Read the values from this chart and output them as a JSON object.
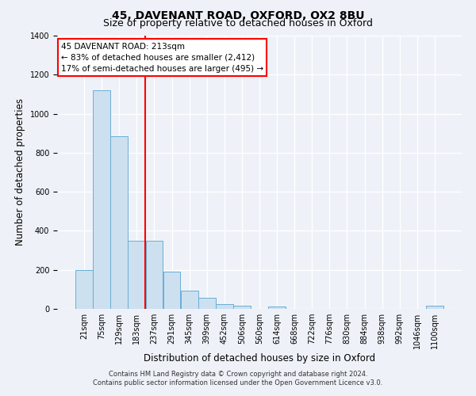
{
  "title": "45, DAVENANT ROAD, OXFORD, OX2 8BU",
  "subtitle": "Size of property relative to detached houses in Oxford",
  "xlabel": "Distribution of detached houses by size in Oxford",
  "ylabel": "Number of detached properties",
  "bar_labels": [
    "21sqm",
    "75sqm",
    "129sqm",
    "183sqm",
    "237sqm",
    "291sqm",
    "345sqm",
    "399sqm",
    "452sqm",
    "506sqm",
    "560sqm",
    "614sqm",
    "668sqm",
    "722sqm",
    "776sqm",
    "830sqm",
    "884sqm",
    "938sqm",
    "992sqm",
    "1046sqm",
    "1100sqm"
  ],
  "bar_values": [
    200,
    1120,
    885,
    350,
    350,
    190,
    95,
    55,
    25,
    15,
    0,
    12,
    0,
    0,
    0,
    0,
    0,
    0,
    0,
    0,
    15
  ],
  "bar_color": "#cce0f0",
  "bar_edge_color": "#6aaed6",
  "vline_pos": 3.5,
  "vline_color": "red",
  "annotation_title": "45 DAVENANT ROAD: 213sqm",
  "annotation_line1": "← 83% of detached houses are smaller (2,412)",
  "annotation_line2": "17% of semi-detached houses are larger (495) →",
  "annotation_box_color": "white",
  "annotation_box_edge": "red",
  "ylim": [
    0,
    1400
  ],
  "yticks": [
    0,
    200,
    400,
    600,
    800,
    1000,
    1200,
    1400
  ],
  "footnote1": "Contains HM Land Registry data © Crown copyright and database right 2024.",
  "footnote2": "Contains public sector information licensed under the Open Government Licence v3.0.",
  "background_color": "#eef2f8",
  "plot_background": "#eef2f8",
  "grid_color": "white",
  "title_fontsize": 10,
  "subtitle_fontsize": 9,
  "axis_label_fontsize": 8.5,
  "tick_fontsize": 7,
  "annotation_fontsize": 7.5,
  "footnote_fontsize": 6
}
